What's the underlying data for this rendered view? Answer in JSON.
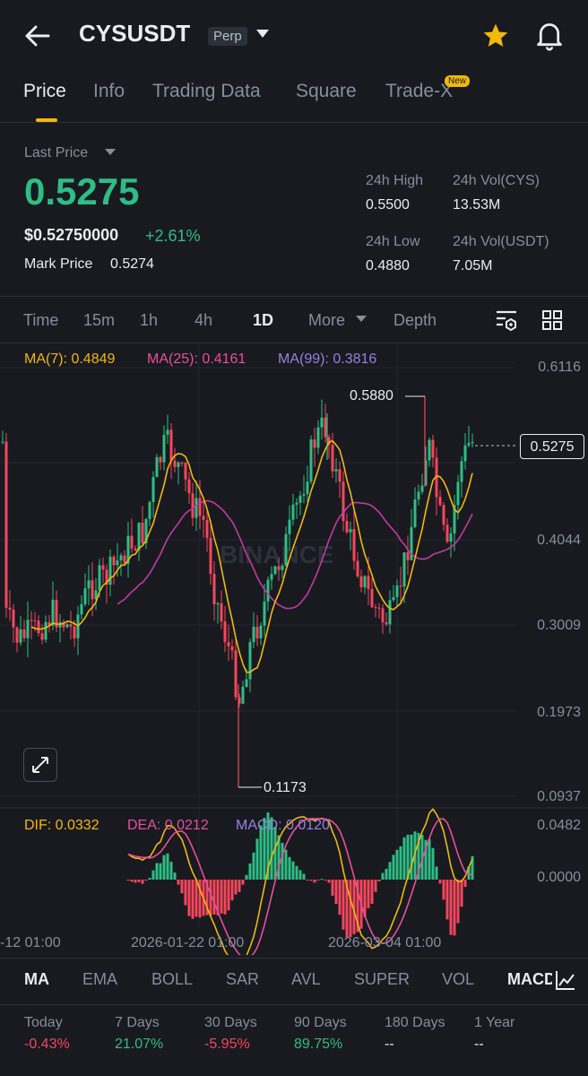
{
  "header": {
    "symbol": "CYSUSDT",
    "contract_type": "Perp",
    "back_icon": "arrow-left-icon",
    "favorite_icon": "star-icon",
    "alert_icon": "bell-icon"
  },
  "tabs": [
    {
      "label": "Price",
      "active": true
    },
    {
      "label": "Info"
    },
    {
      "label": "Trading Data"
    },
    {
      "label": "Square"
    },
    {
      "label": "Trade-X",
      "badge": "New"
    }
  ],
  "price": {
    "last_price_label": "Last Price",
    "last_price": "0.5275",
    "usd_price": "$0.52750000",
    "change": "+2.61%",
    "mark_price_label": "Mark Price",
    "mark_price": "0.5274"
  },
  "stats": {
    "high_label": "24h High",
    "high": "0.5500",
    "low_label": "24h Low",
    "low": "0.4880",
    "vol_cys_label": "24h Vol(CYS)",
    "vol_cys": "13.53M",
    "vol_usdt_label": "24h Vol(USDT)",
    "vol_usdt": "7.05M"
  },
  "timeframes": {
    "items": [
      "Time",
      "15m",
      "1h",
      "4h",
      "1D"
    ],
    "active": "1D",
    "more": "More",
    "depth": "Depth"
  },
  "ma_legend": {
    "ma7": "MA(7): 0.4849",
    "ma25": "MA(25): 0.4161",
    "ma99": "MA(99): 0.3816"
  },
  "macd_legend": {
    "dif": "DIF: 0.0332",
    "dea": "DEA: 0.0212",
    "macd": "MACD: 0.0120"
  },
  "chart_data": {
    "type": "candlestick",
    "y_ticks": [
      "0.6116",
      "0.4044",
      "0.3009",
      "0.1973",
      "0.0937"
    ],
    "ylim": [
      0.0937,
      0.6116
    ],
    "last_price_tag": "0.5275",
    "high_annotation": "0.5880",
    "low_annotation": "0.1173",
    "x_ticks": [
      "-12 01:00",
      "2026-01-22 01:00",
      "2026-03-04 01:00"
    ],
    "macd_y_ticks": [
      "0.0482",
      "0.0000"
    ],
    "colors": {
      "up": "#2ebd85",
      "down": "#f6465d",
      "ma7": "#f0b90b",
      "ma25": "#e84e9c",
      "ma99": "#9b7fe0"
    }
  },
  "indicators": {
    "items": [
      "MA",
      "EMA",
      "BOLL",
      "SAR",
      "AVL",
      "SUPER",
      "VOL",
      "MACD"
    ],
    "active": "MA"
  },
  "performance": [
    {
      "label": "Today",
      "value": "-0.43%",
      "dir": "down"
    },
    {
      "label": "7 Days",
      "value": "21.07%",
      "dir": "up"
    },
    {
      "label": "30 Days",
      "value": "-5.95%",
      "dir": "down"
    },
    {
      "label": "90 Days",
      "value": "89.75%",
      "dir": "up"
    },
    {
      "label": "180 Days",
      "value": "--",
      "dir": "none"
    },
    {
      "label": "1 Year",
      "value": "--",
      "dir": "none"
    }
  ]
}
